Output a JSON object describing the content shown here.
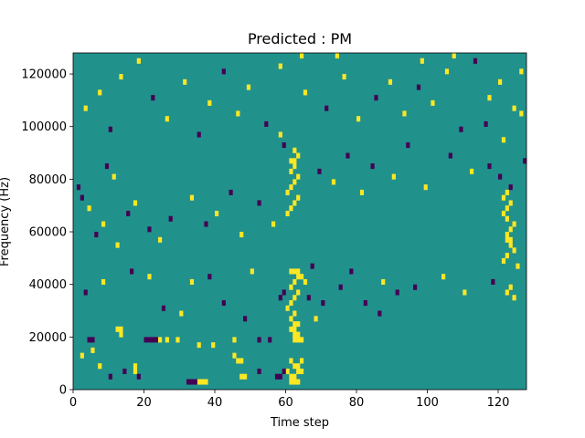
{
  "chart_data": {
    "type": "heatmap",
    "title": "Predicted : PM",
    "xlabel": "Time step",
    "ylabel": "Frequency (Hz)",
    "xlim": [
      0,
      128
    ],
    "ylim": [
      0,
      128000
    ],
    "x_ticks": [
      0,
      20,
      40,
      60,
      80,
      100,
      120
    ],
    "y_ticks": [
      0,
      20000,
      40000,
      60000,
      80000,
      100000,
      120000
    ],
    "grid": false,
    "legend": "none",
    "grid_shape": {
      "time_steps": 128,
      "frequency_bins": 64,
      "bin_hz": 2000
    },
    "class_colors": {
      "-1": "#440154",
      "0": "#21918c",
      "1": "#fde725"
    },
    "background_class": 0,
    "cells": [
      {
        "t": 35,
        "f": 1,
        "v": 1
      },
      {
        "t": 36,
        "f": 1,
        "v": 1
      },
      {
        "t": 37,
        "f": 1,
        "v": 1
      },
      {
        "t": 32,
        "f": 1,
        "v": -1
      },
      {
        "t": 33,
        "f": 1,
        "v": -1
      },
      {
        "t": 34,
        "f": 1,
        "v": -1
      },
      {
        "t": 61,
        "f": 1,
        "v": 1
      },
      {
        "t": 62,
        "f": 1,
        "v": 1
      },
      {
        "t": 63,
        "f": 1,
        "v": 1
      },
      {
        "t": 61,
        "f": 2,
        "v": 1
      },
      {
        "t": 62,
        "f": 2,
        "v": 1
      },
      {
        "t": 63,
        "f": 3,
        "v": 1
      },
      {
        "t": 64,
        "f": 3,
        "v": 1
      },
      {
        "t": 60,
        "f": 3,
        "v": 1
      },
      {
        "t": 62,
        "f": 4,
        "v": 1
      },
      {
        "t": 63,
        "f": 4,
        "v": 1
      },
      {
        "t": 64,
        "f": 5,
        "v": 1
      },
      {
        "t": 61,
        "f": 5,
        "v": 1
      },
      {
        "t": 57,
        "f": 2,
        "v": -1
      },
      {
        "t": 58,
        "f": 2,
        "v": -1
      },
      {
        "t": 59,
        "f": 3,
        "v": -1
      },
      {
        "t": 47,
        "f": 2,
        "v": 1
      },
      {
        "t": 48,
        "f": 2,
        "v": 1
      },
      {
        "t": 46,
        "f": 5,
        "v": 1
      },
      {
        "t": 47,
        "f": 5,
        "v": 1
      },
      {
        "t": 45,
        "f": 6,
        "v": 1
      },
      {
        "t": 52,
        "f": 3,
        "v": -1
      },
      {
        "t": 17,
        "f": 3,
        "v": 1
      },
      {
        "t": 17,
        "f": 4,
        "v": 1
      },
      {
        "t": 18,
        "f": 2,
        "v": -1
      },
      {
        "t": 7,
        "f": 4,
        "v": 1
      },
      {
        "t": 10,
        "f": 2,
        "v": -1
      },
      {
        "t": 14,
        "f": 3,
        "v": -1
      },
      {
        "t": 2,
        "f": 6,
        "v": 1
      },
      {
        "t": 5,
        "f": 7,
        "v": 1
      },
      {
        "t": 13,
        "f": 10,
        "v": 1
      },
      {
        "t": 12,
        "f": 11,
        "v": 1
      },
      {
        "t": 13,
        "f": 11,
        "v": 1
      },
      {
        "t": 4,
        "f": 9,
        "v": -1
      },
      {
        "t": 5,
        "f": 9,
        "v": -1
      },
      {
        "t": 20,
        "f": 9,
        "v": -1
      },
      {
        "t": 21,
        "f": 9,
        "v": -1
      },
      {
        "t": 22,
        "f": 9,
        "v": -1
      },
      {
        "t": 23,
        "f": 9,
        "v": -1
      },
      {
        "t": 24,
        "f": 9,
        "v": 1
      },
      {
        "t": 26,
        "f": 9,
        "v": 1
      },
      {
        "t": 29,
        "f": 9,
        "v": 1
      },
      {
        "t": 35,
        "f": 8,
        "v": 1
      },
      {
        "t": 39,
        "f": 8,
        "v": 1
      },
      {
        "t": 45,
        "f": 9,
        "v": 1
      },
      {
        "t": 52,
        "f": 9,
        "v": -1
      },
      {
        "t": 55,
        "f": 9,
        "v": -1
      },
      {
        "t": 62,
        "f": 9,
        "v": 1
      },
      {
        "t": 63,
        "f": 9,
        "v": 1
      },
      {
        "t": 64,
        "f": 9,
        "v": 1
      },
      {
        "t": 62,
        "f": 10,
        "v": 1
      },
      {
        "t": 63,
        "f": 10,
        "v": 1
      },
      {
        "t": 61,
        "f": 11,
        "v": 1
      },
      {
        "t": 62,
        "f": 11,
        "v": 1
      },
      {
        "t": 62,
        "f": 12,
        "v": 1
      },
      {
        "t": 63,
        "f": 12,
        "v": 1
      },
      {
        "t": 61,
        "f": 13,
        "v": 1
      },
      {
        "t": 62,
        "f": 14,
        "v": 1
      },
      {
        "t": 60,
        "f": 15,
        "v": 1
      },
      {
        "t": 61,
        "f": 16,
        "v": 1
      },
      {
        "t": 62,
        "f": 17,
        "v": 1
      },
      {
        "t": 63,
        "f": 18,
        "v": 1
      },
      {
        "t": 61,
        "f": 19,
        "v": 1
      },
      {
        "t": 62,
        "f": 20,
        "v": 1
      },
      {
        "t": 63,
        "f": 21,
        "v": 1
      },
      {
        "t": 61,
        "f": 22,
        "v": 1
      },
      {
        "t": 62,
        "f": 22,
        "v": 1
      },
      {
        "t": 63,
        "f": 22,
        "v": 1
      },
      {
        "t": 64,
        "f": 21,
        "v": 1
      },
      {
        "t": 65,
        "f": 20,
        "v": 1
      },
      {
        "t": 58,
        "f": 17,
        "v": -1
      },
      {
        "t": 59,
        "f": 18,
        "v": -1
      },
      {
        "t": 66,
        "f": 17,
        "v": -1
      },
      {
        "t": 68,
        "f": 13,
        "v": 1
      },
      {
        "t": 70,
        "f": 16,
        "v": -1
      },
      {
        "t": 75,
        "f": 19,
        "v": -1
      },
      {
        "t": 82,
        "f": 16,
        "v": -1
      },
      {
        "t": 86,
        "f": 14,
        "v": -1
      },
      {
        "t": 91,
        "f": 18,
        "v": -1
      },
      {
        "t": 25,
        "f": 15,
        "v": -1
      },
      {
        "t": 30,
        "f": 14,
        "v": 1
      },
      {
        "t": 42,
        "f": 16,
        "v": -1
      },
      {
        "t": 48,
        "f": 13,
        "v": -1
      },
      {
        "t": 3,
        "f": 18,
        "v": -1
      },
      {
        "t": 8,
        "f": 20,
        "v": 1
      },
      {
        "t": 16,
        "f": 22,
        "v": -1
      },
      {
        "t": 21,
        "f": 21,
        "v": 1
      },
      {
        "t": 33,
        "f": 20,
        "v": 1
      },
      {
        "t": 38,
        "f": 21,
        "v": -1
      },
      {
        "t": 50,
        "f": 22,
        "v": 1
      },
      {
        "t": 67,
        "f": 23,
        "v": -1
      },
      {
        "t": 78,
        "f": 22,
        "v": -1
      },
      {
        "t": 87,
        "f": 20,
        "v": 1
      },
      {
        "t": 96,
        "f": 19,
        "v": -1
      },
      {
        "t": 104,
        "f": 21,
        "v": 1
      },
      {
        "t": 110,
        "f": 18,
        "v": 1
      },
      {
        "t": 118,
        "f": 20,
        "v": -1
      },
      {
        "t": 122,
        "f": 18,
        "v": 1
      },
      {
        "t": 123,
        "f": 19,
        "v": 1
      },
      {
        "t": 124,
        "f": 17,
        "v": 1
      },
      {
        "t": 125,
        "f": 23,
        "v": 1
      },
      {
        "t": 121,
        "f": 24,
        "v": 1
      },
      {
        "t": 122,
        "f": 25,
        "v": 1
      },
      {
        "t": 124,
        "f": 26,
        "v": 1
      },
      {
        "t": 123,
        "f": 27,
        "v": 1
      },
      {
        "t": 122,
        "f": 28,
        "v": 1
      },
      {
        "t": 123,
        "f": 28,
        "v": 1
      },
      {
        "t": 122,
        "f": 29,
        "v": 1
      },
      {
        "t": 123,
        "f": 30,
        "v": 1
      },
      {
        "t": 124,
        "f": 31,
        "v": 1
      },
      {
        "t": 122,
        "f": 32,
        "v": 1
      },
      {
        "t": 121,
        "f": 33,
        "v": 1
      },
      {
        "t": 122,
        "f": 34,
        "v": 1
      },
      {
        "t": 123,
        "f": 35,
        "v": 1
      },
      {
        "t": 121,
        "f": 36,
        "v": 1
      },
      {
        "t": 122,
        "f": 37,
        "v": 1
      },
      {
        "t": 123,
        "f": 38,
        "v": -1
      },
      {
        "t": 120,
        "f": 40,
        "v": -1
      },
      {
        "t": 117,
        "f": 42,
        "v": -1
      },
      {
        "t": 127,
        "f": 43,
        "v": -1
      },
      {
        "t": 9,
        "f": 42,
        "v": -1
      },
      {
        "t": 11,
        "f": 40,
        "v": 1
      },
      {
        "t": 1,
        "f": 38,
        "v": -1
      },
      {
        "t": 2,
        "f": 36,
        "v": -1
      },
      {
        "t": 4,
        "f": 34,
        "v": 1
      },
      {
        "t": 8,
        "f": 31,
        "v": 1
      },
      {
        "t": 6,
        "f": 29,
        "v": -1
      },
      {
        "t": 12,
        "f": 27,
        "v": 1
      },
      {
        "t": 15,
        "f": 33,
        "v": -1
      },
      {
        "t": 17,
        "f": 35,
        "v": 1
      },
      {
        "t": 21,
        "f": 30,
        "v": -1
      },
      {
        "t": 24,
        "f": 28,
        "v": 1
      },
      {
        "t": 27,
        "f": 32,
        "v": -1
      },
      {
        "t": 33,
        "f": 36,
        "v": 1
      },
      {
        "t": 37,
        "f": 31,
        "v": -1
      },
      {
        "t": 40,
        "f": 33,
        "v": 1
      },
      {
        "t": 44,
        "f": 37,
        "v": -1
      },
      {
        "t": 47,
        "f": 29,
        "v": 1
      },
      {
        "t": 52,
        "f": 35,
        "v": -1
      },
      {
        "t": 56,
        "f": 31,
        "v": 1
      },
      {
        "t": 60,
        "f": 33,
        "v": 1
      },
      {
        "t": 61,
        "f": 34,
        "v": 1
      },
      {
        "t": 62,
        "f": 35,
        "v": 1
      },
      {
        "t": 63,
        "f": 36,
        "v": 1
      },
      {
        "t": 60,
        "f": 37,
        "v": 1
      },
      {
        "t": 61,
        "f": 38,
        "v": 1
      },
      {
        "t": 62,
        "f": 39,
        "v": 1
      },
      {
        "t": 63,
        "f": 40,
        "v": 1
      },
      {
        "t": 61,
        "f": 41,
        "v": 1
      },
      {
        "t": 62,
        "f": 42,
        "v": 1
      },
      {
        "t": 61,
        "f": 43,
        "v": 1
      },
      {
        "t": 62,
        "f": 43,
        "v": 1
      },
      {
        "t": 63,
        "f": 44,
        "v": 1
      },
      {
        "t": 62,
        "f": 45,
        "v": 1
      },
      {
        "t": 59,
        "f": 46,
        "v": -1
      },
      {
        "t": 58,
        "f": 48,
        "v": 1
      },
      {
        "t": 69,
        "f": 41,
        "v": -1
      },
      {
        "t": 73,
        "f": 39,
        "v": 1
      },
      {
        "t": 77,
        "f": 44,
        "v": -1
      },
      {
        "t": 81,
        "f": 37,
        "v": 1
      },
      {
        "t": 84,
        "f": 42,
        "v": -1
      },
      {
        "t": 90,
        "f": 40,
        "v": 1
      },
      {
        "t": 94,
        "f": 46,
        "v": -1
      },
      {
        "t": 99,
        "f": 38,
        "v": 1
      },
      {
        "t": 106,
        "f": 44,
        "v": -1
      },
      {
        "t": 112,
        "f": 41,
        "v": 1
      },
      {
        "t": 116,
        "f": 50,
        "v": -1
      },
      {
        "t": 121,
        "f": 47,
        "v": 1
      },
      {
        "t": 126,
        "f": 52,
        "v": 1
      },
      {
        "t": 3,
        "f": 53,
        "v": 1
      },
      {
        "t": 7,
        "f": 56,
        "v": 1
      },
      {
        "t": 10,
        "f": 49,
        "v": -1
      },
      {
        "t": 13,
        "f": 59,
        "v": 1
      },
      {
        "t": 18,
        "f": 62,
        "v": 1
      },
      {
        "t": 22,
        "f": 55,
        "v": -1
      },
      {
        "t": 26,
        "f": 51,
        "v": 1
      },
      {
        "t": 31,
        "f": 58,
        "v": 1
      },
      {
        "t": 35,
        "f": 48,
        "v": -1
      },
      {
        "t": 38,
        "f": 54,
        "v": 1
      },
      {
        "t": 42,
        "f": 60,
        "v": -1
      },
      {
        "t": 46,
        "f": 52,
        "v": 1
      },
      {
        "t": 49,
        "f": 57,
        "v": 1
      },
      {
        "t": 54,
        "f": 50,
        "v": -1
      },
      {
        "t": 58,
        "f": 61,
        "v": 1
      },
      {
        "t": 65,
        "f": 56,
        "v": 1
      },
      {
        "t": 71,
        "f": 53,
        "v": -1
      },
      {
        "t": 76,
        "f": 59,
        "v": 1
      },
      {
        "t": 80,
        "f": 51,
        "v": 1
      },
      {
        "t": 85,
        "f": 55,
        "v": -1
      },
      {
        "t": 89,
        "f": 58,
        "v": 1
      },
      {
        "t": 93,
        "f": 52,
        "v": 1
      },
      {
        "t": 97,
        "f": 57,
        "v": -1
      },
      {
        "t": 101,
        "f": 54,
        "v": 1
      },
      {
        "t": 105,
        "f": 60,
        "v": 1
      },
      {
        "t": 109,
        "f": 49,
        "v": -1
      },
      {
        "t": 113,
        "f": 62,
        "v": -1
      },
      {
        "t": 117,
        "f": 55,
        "v": 1
      },
      {
        "t": 120,
        "f": 58,
        "v": 1
      },
      {
        "t": 124,
        "f": 53,
        "v": 1
      },
      {
        "t": 126,
        "f": 60,
        "v": 1
      },
      {
        "t": 107,
        "f": 63,
        "v": 1
      },
      {
        "t": 98,
        "f": 62,
        "v": 1
      },
      {
        "t": 74,
        "f": 63,
        "v": 1
      },
      {
        "t": 64,
        "f": 63,
        "v": 1
      }
    ]
  }
}
